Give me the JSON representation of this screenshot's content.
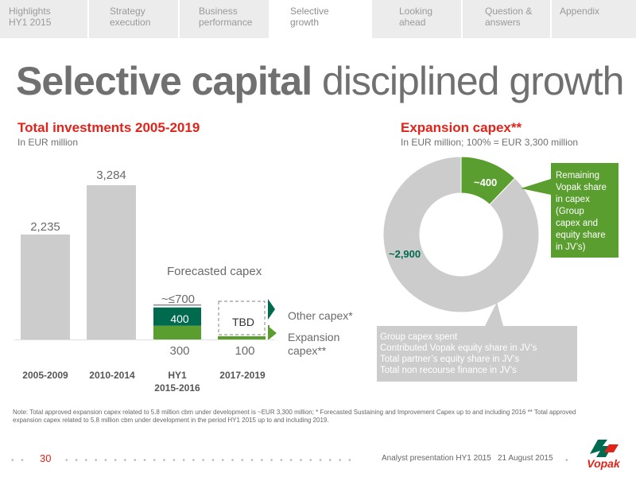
{
  "nav": {
    "tabs": [
      {
        "line1": "Highlights",
        "line2": "HY1 2015"
      },
      {
        "line1": "Strategy",
        "line2": "execution"
      },
      {
        "line1": "Business",
        "line2": "performance"
      },
      {
        "line1": "Selective",
        "line2": "growth"
      },
      {
        "line1": "Looking",
        "line2": "ahead"
      },
      {
        "line1": "Question &",
        "line2": "answers"
      },
      {
        "line1": "Appendix",
        "line2": ""
      }
    ],
    "active_index": 3
  },
  "title": {
    "bold": "Selective capital",
    "regular": " disciplined growth"
  },
  "colors": {
    "accent_red": "#e2231a",
    "green_dark": "#006a4e",
    "green_light": "#5a9e2f",
    "bar_grey": "#cccccc"
  },
  "chart_data": [
    {
      "type": "bar",
      "title": "Total investments 2005-2019",
      "subtitle": "In EUR million",
      "categories": [
        "2005-2009",
        "2010-2014",
        "HY1 2015-2016",
        "2017-2019"
      ],
      "category_lines": [
        [
          "2005-2009"
        ],
        [
          "2010-2014"
        ],
        [
          "HY1",
          "2015-2016"
        ],
        [
          "2017-2019"
        ]
      ],
      "historical": [
        {
          "category": "2005-2009",
          "value": 2235,
          "label": "2,235"
        },
        {
          "category": "2010-2014",
          "value": 3284,
          "label": "3,284"
        }
      ],
      "forecast_title": "Forecasted capex",
      "forecast_top_label": "~≤700",
      "series": [
        {
          "name": "Expansion capex**",
          "name_lines": [
            "Expansion",
            "capex**"
          ],
          "values": [
            null,
            null,
            300,
            100
          ],
          "labels": [
            "",
            "",
            "300",
            "100"
          ]
        },
        {
          "name": "Other capex*",
          "name_lines": [
            "Other capex*"
          ],
          "values": [
            null,
            null,
            400,
            null
          ],
          "labels": [
            "",
            "",
            "400",
            "TBD"
          ]
        }
      ],
      "ylim": [
        0,
        3500
      ]
    },
    {
      "type": "pie",
      "title": "Expansion capex**",
      "subtitle": "In EUR million; 100% = EUR 3,300 million",
      "slices": [
        {
          "label": "~400",
          "value": 400
        },
        {
          "label": "~2,900",
          "value": 2900
        }
      ],
      "callout_green": [
        "Remaining",
        "Vopak share",
        "in capex",
        "(Group",
        "capex and",
        "equity share",
        "in JV’s)"
      ],
      "callout_grey": [
        "Group capex spent",
        "Contributed Vopak equity share in JV’s",
        "Total partner’s equity share in JV’s",
        "Total non recourse finance in JV’s"
      ]
    }
  ],
  "note": "Note: Total approved expansion capex related to 5.8 million cbm under development is ~EUR 3,300 million; * Forecasted Sustaining and Improvement Capex up to and including 2016 ** Total approved expansion capex related to 5.8 million cbm under development in the period HY1 2015 up to and including 2019.",
  "footer": {
    "page": "30",
    "presentation": "Analyst presentation HY1 2015",
    "date": "21 August 2015",
    "logo": "Vopak"
  }
}
